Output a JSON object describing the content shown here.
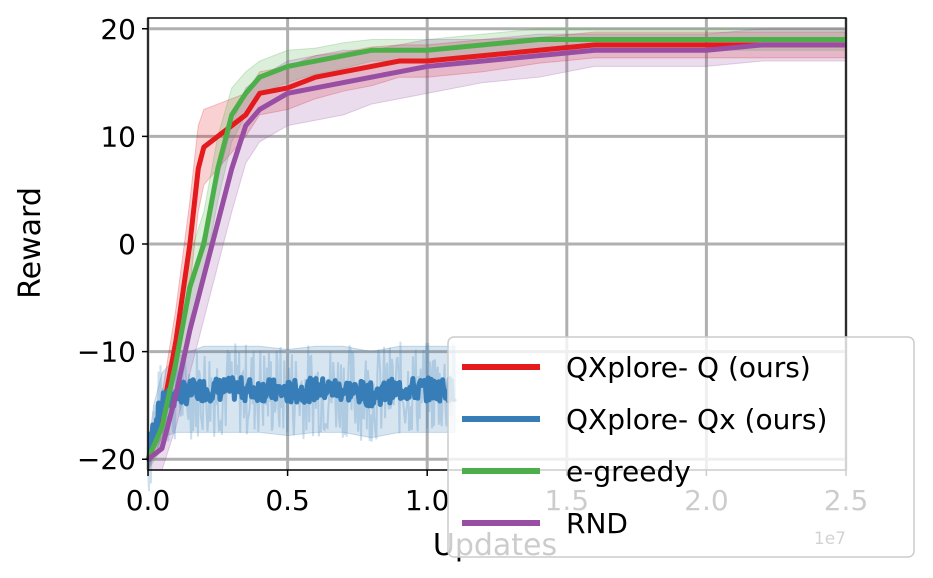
{
  "chart_data": {
    "type": "line",
    "xlabel": "Updates",
    "ylabel": "Reward",
    "x_offset_label": "1e7",
    "xlim": [
      0,
      2.5
    ],
    "ylim": [
      -21,
      21
    ],
    "xticks": [
      0.0,
      0.5,
      1.0,
      1.5,
      2.0,
      2.5
    ],
    "xtick_labels": [
      "0.0",
      "0.5",
      "1.0",
      "1.5",
      "2.0",
      "2.5"
    ],
    "yticks": [
      -20,
      -10,
      0,
      10,
      20
    ],
    "ytick_labels": [
      "−20",
      "−10",
      "0",
      "10",
      "20"
    ],
    "grid": true,
    "legend_position": "lower-right",
    "series": [
      {
        "name": "QXplore- Q (ours)",
        "color": "#e41a1c",
        "x": [
          0.0,
          0.05,
          0.1,
          0.15,
          0.18,
          0.2,
          0.25,
          0.3,
          0.35,
          0.4,
          0.5,
          0.6,
          0.7,
          0.8,
          0.9,
          1.0,
          1.2,
          1.4,
          1.6,
          1.8,
          2.0,
          2.2,
          2.4,
          2.5
        ],
        "y": [
          -20,
          -16,
          -9,
          0,
          7,
          9,
          10,
          11,
          12,
          14,
          14.5,
          15.5,
          16,
          16.5,
          17,
          17,
          17.5,
          18,
          18.5,
          18.5,
          18.5,
          18.5,
          18.5,
          18.5
        ],
        "band_width": [
          1,
          2,
          3,
          4,
          4,
          3.5,
          3,
          2.5,
          2,
          2,
          2,
          2,
          1.8,
          1.8,
          1.5,
          1.5,
          1.5,
          1.2,
          1.2,
          1.2,
          1.2,
          1.2,
          1.2,
          1.2
        ]
      },
      {
        "name": "QXplore- Qx (ours)",
        "color": "#377eb8",
        "x": [
          0.0,
          0.02,
          0.05,
          0.1,
          0.2,
          0.3,
          0.4,
          0.5,
          0.6,
          0.7,
          0.8,
          0.9,
          1.0,
          1.05,
          1.1
        ],
        "y": [
          -20,
          -17,
          -15,
          -14,
          -13.5,
          -13.5,
          -13.5,
          -13.8,
          -13.5,
          -13.5,
          -14,
          -13.5,
          -13.5,
          -13.5,
          -13.5
        ],
        "band_width": [
          1,
          2,
          3,
          3.5,
          4,
          4,
          4,
          4,
          4,
          4,
          4,
          4,
          4,
          4,
          4
        ]
      },
      {
        "name": "e-greedy",
        "color": "#4daf4a",
        "x": [
          0.0,
          0.05,
          0.1,
          0.15,
          0.2,
          0.25,
          0.3,
          0.35,
          0.4,
          0.5,
          0.6,
          0.7,
          0.8,
          0.9,
          1.0,
          1.2,
          1.4,
          1.6,
          1.8,
          2.0,
          2.2,
          2.4,
          2.5
        ],
        "y": [
          -20,
          -17,
          -11,
          -4,
          0,
          7,
          12,
          14,
          15.5,
          16.5,
          17,
          17.5,
          18,
          18,
          18,
          18.5,
          19,
          19,
          19,
          19,
          19,
          19,
          19
        ],
        "band_width": [
          1,
          2,
          3,
          3,
          3,
          3,
          2.5,
          2,
          1.5,
          1.5,
          1.2,
          1.2,
          1,
          1,
          1,
          1,
          1,
          1,
          1,
          1,
          1,
          1,
          1
        ]
      },
      {
        "name": "RND",
        "color": "#984ea3",
        "x": [
          0.0,
          0.05,
          0.1,
          0.15,
          0.2,
          0.25,
          0.3,
          0.35,
          0.4,
          0.5,
          0.6,
          0.7,
          0.8,
          0.9,
          1.0,
          1.2,
          1.4,
          1.6,
          1.8,
          2.0,
          2.2,
          2.4,
          2.5
        ],
        "y": [
          -20,
          -19,
          -14,
          -8,
          -3,
          2,
          7,
          11,
          12.5,
          14,
          14.5,
          15,
          15.5,
          16,
          16.5,
          17,
          17.5,
          18,
          18,
          18,
          18.5,
          18.5,
          18.5
        ],
        "band_width": [
          1,
          2,
          3,
          4,
          4,
          4,
          4,
          3.5,
          3,
          3,
          3,
          3,
          2.5,
          2.5,
          2.5,
          2,
          2,
          1.5,
          1.5,
          1.5,
          1.5,
          1.5,
          1.5
        ]
      }
    ]
  }
}
